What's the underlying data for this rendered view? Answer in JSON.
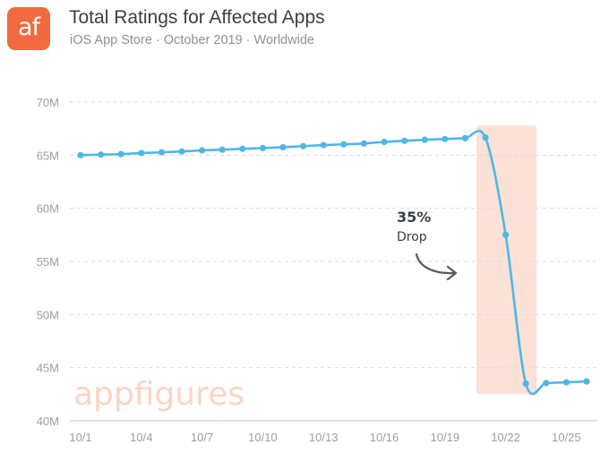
{
  "header": {
    "logo_text": "af",
    "logo_color": "#f26a3f",
    "title": "Total Ratings for Affected Apps",
    "subtitle": "iOS App Store · October 2019 · Worldwide"
  },
  "watermark": "appfigures",
  "annotation": {
    "percent": "35%",
    "label": "Drop",
    "arrow_icon": "curved-arrow-icon"
  },
  "colors": {
    "line": "#4db8e6",
    "highlight": "#fbe1d7",
    "gridline": "#d9dcde"
  },
  "chart_data": {
    "type": "line",
    "title": "Total Ratings for Affected Apps",
    "subtitle": "iOS App Store · October 2019 · Worldwide",
    "xlabel": "",
    "ylabel": "",
    "ylim": [
      40,
      70
    ],
    "y_unit": "M",
    "y_ticks": [
      "40M",
      "45M",
      "50M",
      "55M",
      "60M",
      "65M",
      "70M"
    ],
    "x_ticks": [
      "10/1",
      "10/4",
      "10/7",
      "10/10",
      "10/13",
      "10/16",
      "10/19",
      "10/22",
      "10/25"
    ],
    "grid": true,
    "legend": "none",
    "x": [
      "10/1",
      "10/2",
      "10/3",
      "10/4",
      "10/5",
      "10/6",
      "10/7",
      "10/8",
      "10/9",
      "10/10",
      "10/11",
      "10/12",
      "10/13",
      "10/14",
      "10/15",
      "10/16",
      "10/17",
      "10/18",
      "10/19",
      "10/20",
      "10/21",
      "10/22",
      "10/23",
      "10/24",
      "10/25",
      "10/26"
    ],
    "series": [
      {
        "values": [
          65.0,
          65.05,
          65.1,
          65.2,
          65.27,
          65.35,
          65.45,
          65.52,
          65.6,
          65.67,
          65.75,
          65.85,
          65.95,
          66.02,
          66.1,
          66.25,
          66.35,
          66.45,
          66.52,
          66.6,
          66.65,
          57.5,
          43.5,
          43.55,
          43.62,
          43.7
        ]
      }
    ],
    "highlight_range": [
      "10/21",
      "10/23"
    ]
  }
}
